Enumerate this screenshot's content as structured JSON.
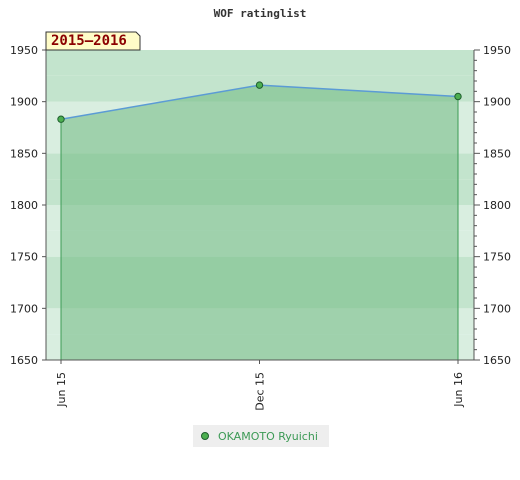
{
  "chart_data": {
    "type": "area",
    "title": "WOF ratinglist",
    "period_label": "2015–2016",
    "x": [
      "Jun 15",
      "Dec 15",
      "Jun 16"
    ],
    "series": [
      {
        "name": "OKAMOTO Ryuichi",
        "values": [
          1883,
          1916,
          1905
        ]
      }
    ],
    "ylim": [
      1650,
      1950
    ],
    "yticks": [
      1650,
      1700,
      1750,
      1800,
      1850,
      1900,
      1950
    ],
    "y_axis": "both-sides",
    "grid": true,
    "legend": "bottom-center"
  },
  "colors": {
    "line": "#5b9bd5",
    "fill": "#6fba82",
    "marker": "#4caf50",
    "band_dark": "#7ac493",
    "band_light": "#d9eee0",
    "legend_text": "#3c9a55",
    "period_bg": "#fffcc8",
    "period_text": "#8b0000"
  }
}
